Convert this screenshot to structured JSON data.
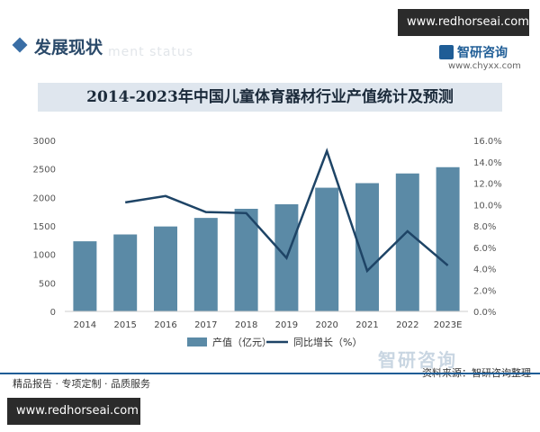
{
  "header": {
    "top_url": "www.redhorseai.com",
    "section_title": "发展现状",
    "ghost_subtitle": "ment status",
    "logo_name": "智研咨询",
    "logo_url": "www.chyxx.com"
  },
  "chart_data": {
    "type": "bar",
    "title": "2014-2023年中国儿童体育器材行业产值统计及预测",
    "categories": [
      "2014",
      "2015",
      "2016",
      "2017",
      "2018",
      "2019",
      "2020",
      "2021",
      "2022",
      "2023E"
    ],
    "series": [
      {
        "name": "产值（亿元）",
        "type": "bar",
        "axis": "left",
        "values": [
          1230,
          1350,
          1490,
          1640,
          1800,
          1880,
          2170,
          2250,
          2420,
          2530
        ]
      },
      {
        "name": "同比增长（%）",
        "type": "line",
        "axis": "right",
        "values": [
          null,
          10.2,
          10.8,
          9.3,
          9.2,
          5.0,
          15.0,
          3.8,
          7.5,
          4.3
        ]
      }
    ],
    "y_left": {
      "ylim": [
        0,
        3000
      ],
      "ticks": [
        "0",
        "500",
        "1000",
        "1500",
        "2000",
        "2500",
        "3000"
      ]
    },
    "y_right": {
      "ylim": [
        0,
        16
      ],
      "ticks": [
        "0.0%",
        "2.0%",
        "4.0%",
        "6.0%",
        "8.0%",
        "10.0%",
        "12.0%",
        "14.0%",
        "16.0%"
      ]
    },
    "legend_position": "bottom",
    "grid": false,
    "colors": {
      "bar": "#5b8aa6",
      "line": "#1e4466"
    }
  },
  "footer": {
    "left_text": "精品报告 · 专项定制 · 品质服务",
    "source_text": "资料来源：智研咨询整理",
    "watermark": "智研咨询",
    "bottom_url": "www.redhorseai.com"
  }
}
